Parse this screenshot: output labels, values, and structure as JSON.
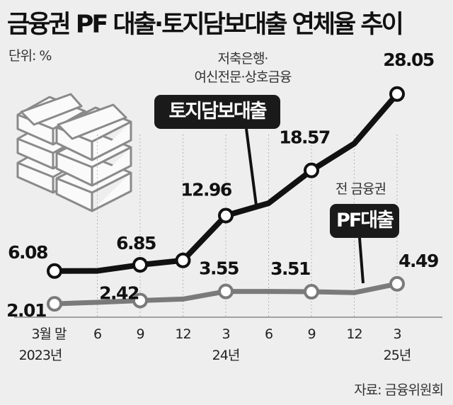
{
  "chart_data": {
    "type": "line",
    "title": "금융권 PF 대출·토지담보대출 연체율 추이",
    "unit_label": "단위: %",
    "categories": [
      "3월 말",
      "6",
      "9",
      "12",
      "3",
      "6",
      "9",
      "12",
      "3"
    ],
    "year_labels": [
      {
        "index": 0,
        "label": "2023년"
      },
      {
        "index": 4,
        "label": "24년"
      },
      {
        "index": 8,
        "label": "25년"
      }
    ],
    "ylim": [
      0,
      30
    ],
    "grid": "vertical dotted",
    "series": [
      {
        "name": "토지담보대출",
        "group_label": [
          "저축은행·",
          "여신전문·상호금융"
        ],
        "color": "#111111",
        "values": [
          6.08,
          6.1,
          6.85,
          7.4,
          12.96,
          14.5,
          18.57,
          21.9,
          28.05
        ],
        "markers": [
          0,
          2,
          3,
          4,
          6,
          8
        ],
        "data_labels": {
          "0": "6.08",
          "2": "6.85",
          "4": "12.96",
          "6": "18.57",
          "8": "28.05"
        }
      },
      {
        "name": "PF대출",
        "group_label": [
          "전 금융권"
        ],
        "color": "#7a7a7a",
        "values": [
          2.01,
          2.2,
          2.42,
          2.6,
          3.55,
          3.55,
          3.51,
          3.4,
          4.49
        ],
        "markers": [
          0,
          2,
          4,
          6,
          8
        ],
        "data_labels": {
          "0": "2.01",
          "2": "2.42",
          "4": "3.55",
          "6": "3.51",
          "8": "4.49"
        }
      }
    ],
    "source": "자료: 금융위원회"
  }
}
